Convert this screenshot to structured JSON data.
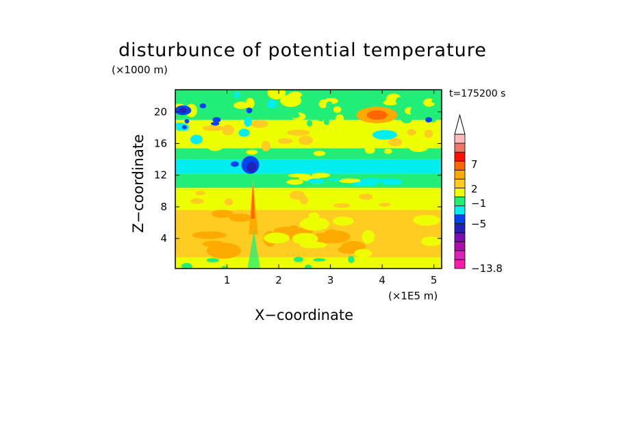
{
  "chart_data": {
    "type": "heatmap",
    "title": "disturbunce of potential temperature",
    "xlabel": "X−coordinate",
    "ylabel": "Z−coordinate",
    "x_unit": "(×1E5 m)",
    "y_unit": "(×1000 m)",
    "time_label": "t=175200 s",
    "xlim": [
      0,
      5.15
    ],
    "ylim": [
      0.2,
      22.8
    ],
    "x_ticks": [
      "1",
      "2",
      "3",
      "4",
      "5"
    ],
    "y_ticks": [
      "4",
      "8",
      "12",
      "16",
      "20"
    ],
    "colorbar": {
      "min": -13.8,
      "tick_labels": [
        "7",
        "2",
        "−1",
        "−5",
        "−13.8"
      ],
      "extend": "max",
      "colors": [
        "#ff1aaa",
        "#dd22bb",
        "#aa11aa",
        "#7711aa",
        "#2222bb",
        "#0044ee",
        "#00eeee",
        "#22ee77",
        "#eeff00",
        "#ffcc22",
        "#ffaa00",
        "#ff6600",
        "#ff1100",
        "#ee7766",
        "#ffbbbb"
      ]
    },
    "bands": [
      {
        "z": [
          0.2,
          1.6
        ],
        "level": "yellow"
      },
      {
        "z": [
          1.6,
          7.6
        ],
        "level": "light-orange"
      },
      {
        "z": [
          7.6,
          10.4
        ],
        "level": "yellow"
      },
      {
        "z": [
          10.4,
          12.2
        ],
        "level": "green"
      },
      {
        "z": [
          12.2,
          14.0
        ],
        "level": "cyan"
      },
      {
        "z": [
          14.0,
          15.4
        ],
        "level": "green"
      },
      {
        "z": [
          15.4,
          19.0
        ],
        "level": "yellow"
      },
      {
        "z": [
          19.0,
          22.8
        ],
        "level": "mixed"
      }
    ],
    "features": [
      {
        "x": 1.5,
        "z": [
          5.0,
          11.5
        ],
        "level": "orange-red plume"
      },
      {
        "x": 3.9,
        "z": 19.6,
        "level": "orange maximum"
      },
      {
        "x": 0.15,
        "z": 20.2,
        "level": "blue minimum"
      },
      {
        "x": 1.45,
        "z": 13.3,
        "level": "dark blue minimum"
      }
    ]
  }
}
